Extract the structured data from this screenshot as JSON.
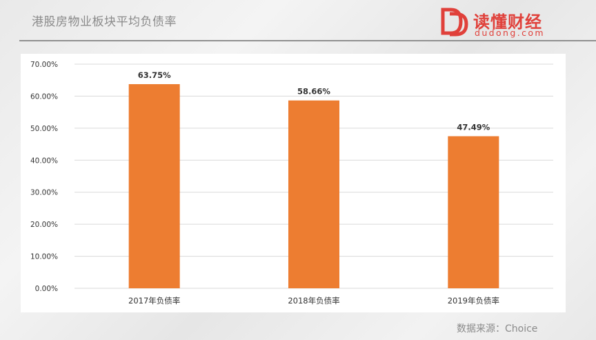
{
  "header": {
    "title": "港股房物业板块平均负债率",
    "logo_name": "读懂财经",
    "logo_url": "dudong.com"
  },
  "colors": {
    "bar": "#ED7D31",
    "accent": "#E0403A",
    "grid": "#D9D9D9"
  },
  "chart_data": {
    "type": "bar",
    "categories": [
      "2017年负债率",
      "2018年负债率",
      "2019年负债率"
    ],
    "values": [
      63.75,
      58.66,
      47.49
    ],
    "value_labels": [
      "63.75%",
      "58.66%",
      "47.49%"
    ],
    "yticks": [
      "0.00%",
      "10.00%",
      "20.00%",
      "30.00%",
      "40.00%",
      "50.00%",
      "60.00%",
      "70.00%"
    ],
    "ylim": [
      0,
      70
    ],
    "grid": true,
    "title": "",
    "xlabel": "",
    "ylabel": ""
  },
  "footer": {
    "source": "数据来源：Choice"
  }
}
